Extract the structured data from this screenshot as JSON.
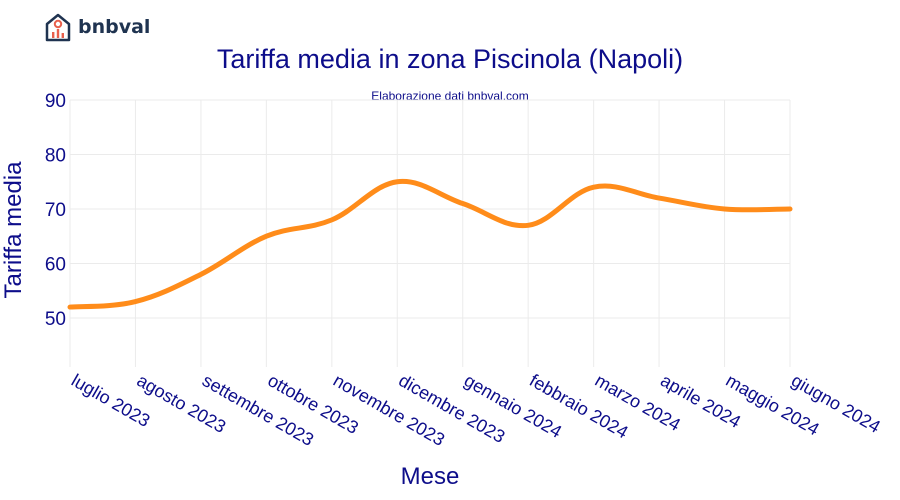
{
  "brand": {
    "name": "bnbval",
    "logo_icon": "house-chart-icon"
  },
  "chart_data": {
    "type": "line",
    "title": "Tariffa media in zona Piscinola (Napoli)",
    "subtitle": "Elaborazione dati bnbval.com",
    "xlabel": "Mese",
    "ylabel": "Tariffa media",
    "categories": [
      "luglio 2023",
      "agosto 2023",
      "settembre 2023",
      "ottobre 2023",
      "novembre 2023",
      "dicembre 2023",
      "gennaio 2024",
      "febbraio 2024",
      "marzo 2024",
      "aprile 2024",
      "maggio 2024",
      "giugno 2024"
    ],
    "series": [
      {
        "values": [
          52,
          53,
          58,
          65,
          68,
          75,
          71,
          67,
          74,
          72,
          70,
          70
        ],
        "color": "#ff8c1a"
      }
    ],
    "yticks": [
      50,
      60,
      70,
      80,
      90
    ],
    "ylim": [
      41,
      90
    ],
    "grid": true,
    "legend": "none"
  }
}
